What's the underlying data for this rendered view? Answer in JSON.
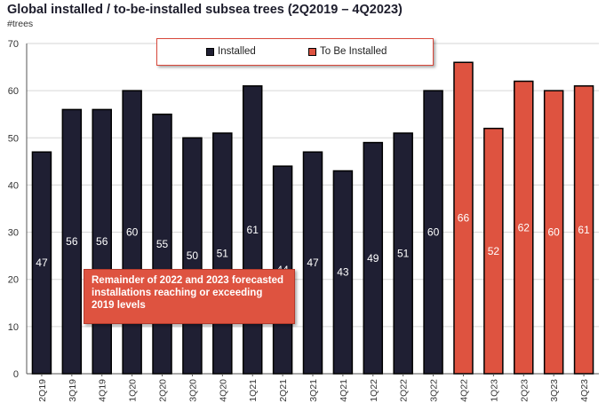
{
  "chart_data": {
    "type": "bar",
    "title": "Global installed / to-be-installed subsea trees (2Q2019 – 4Q2023)",
    "subtitle": "#trees",
    "categories": [
      "2Q19",
      "3Q19",
      "4Q19",
      "1Q20",
      "2Q20",
      "3Q20",
      "4Q20",
      "1Q21",
      "2Q21",
      "3Q21",
      "4Q21",
      "1Q22",
      "2Q22",
      "3Q22",
      "4Q22",
      "1Q23",
      "2Q23",
      "3Q23",
      "4Q23"
    ],
    "values": [
      47,
      56,
      56,
      60,
      55,
      50,
      51,
      61,
      44,
      47,
      43,
      49,
      51,
      60,
      66,
      52,
      62,
      60,
      61
    ],
    "series_index": [
      0,
      0,
      0,
      0,
      0,
      0,
      0,
      0,
      0,
      0,
      0,
      0,
      0,
      0,
      1,
      1,
      1,
      1,
      1
    ],
    "series": [
      {
        "name": "Installed",
        "color": "#1f1f33"
      },
      {
        "name": "To Be Installed",
        "color": "#de5340"
      }
    ],
    "ylim": [
      0,
      70
    ],
    "yticks": [
      0,
      10,
      20,
      30,
      40,
      50,
      60,
      70
    ],
    "grid": true,
    "legend_position": "top",
    "annotation": "Remainder of 2022 and 2023 forecasted installations reaching or exceeding 2019 levels"
  }
}
